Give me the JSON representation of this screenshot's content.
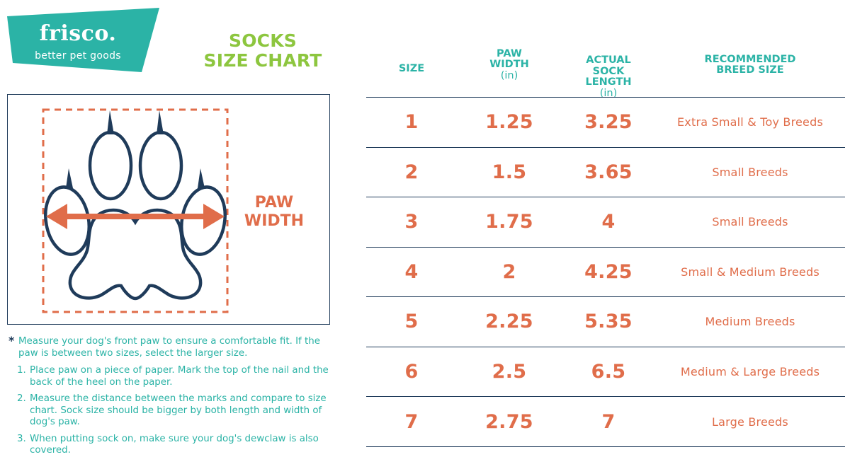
{
  "brand": {
    "name": "frisco.",
    "tagline": "better pet goods",
    "color": "#2bb3a6"
  },
  "title": {
    "line1": "SOCKS",
    "line2": "SIZE CHART",
    "color": "#8dc63f"
  },
  "diagram": {
    "label_line1": "PAW",
    "label_line2": "WIDTH",
    "outline_color": "#1f3b5a",
    "accent_color": "#e06d4a"
  },
  "instructions": {
    "note": "Measure your dog's front paw to ensure a comfortable fit. If the paw is between two sizes, select the larger size.",
    "steps": [
      {
        "num": "1.",
        "text": "Place paw on a piece of paper. Mark the top of the nail and the back of the heel on the paper."
      },
      {
        "num": "2.",
        "text": "Measure the distance between the marks and compare to size chart. Sock size should be bigger by both length and width of dog's paw."
      },
      {
        "num": "3.",
        "text": "When putting sock on, make sure your dog's dewclaw is also covered."
      }
    ]
  },
  "table": {
    "headers": {
      "size": "SIZE",
      "paw_width_l1": "PAW",
      "paw_width_l2": "WIDTH",
      "paw_width_unit": "(in)",
      "sock_length_l1": "ACTUAL",
      "sock_length_l2": "SOCK",
      "sock_length_l3": "LENGTH",
      "sock_length_unit": "(in)",
      "breed_l1": "RECOMMENDED",
      "breed_l2": "BREED SIZE"
    },
    "rows": [
      {
        "size": "1",
        "paw_width": "1.25",
        "sock_length": "3.25",
        "breed": "Extra Small & Toy Breeds"
      },
      {
        "size": "2",
        "paw_width": "1.5",
        "sock_length": "3.65",
        "breed": "Small Breeds"
      },
      {
        "size": "3",
        "paw_width": "1.75",
        "sock_length": "4",
        "breed": "Small Breeds"
      },
      {
        "size": "4",
        "paw_width": "2",
        "sock_length": "4.25",
        "breed": "Small & Medium Breeds"
      },
      {
        "size": "5",
        "paw_width": "2.25",
        "sock_length": "5.35",
        "breed": "Medium Breeds"
      },
      {
        "size": "6",
        "paw_width": "2.5",
        "sock_length": "6.5",
        "breed": "Medium & Large Breeds"
      },
      {
        "size": "7",
        "paw_width": "2.75",
        "sock_length": "7",
        "breed": "Large Breeds"
      }
    ]
  }
}
